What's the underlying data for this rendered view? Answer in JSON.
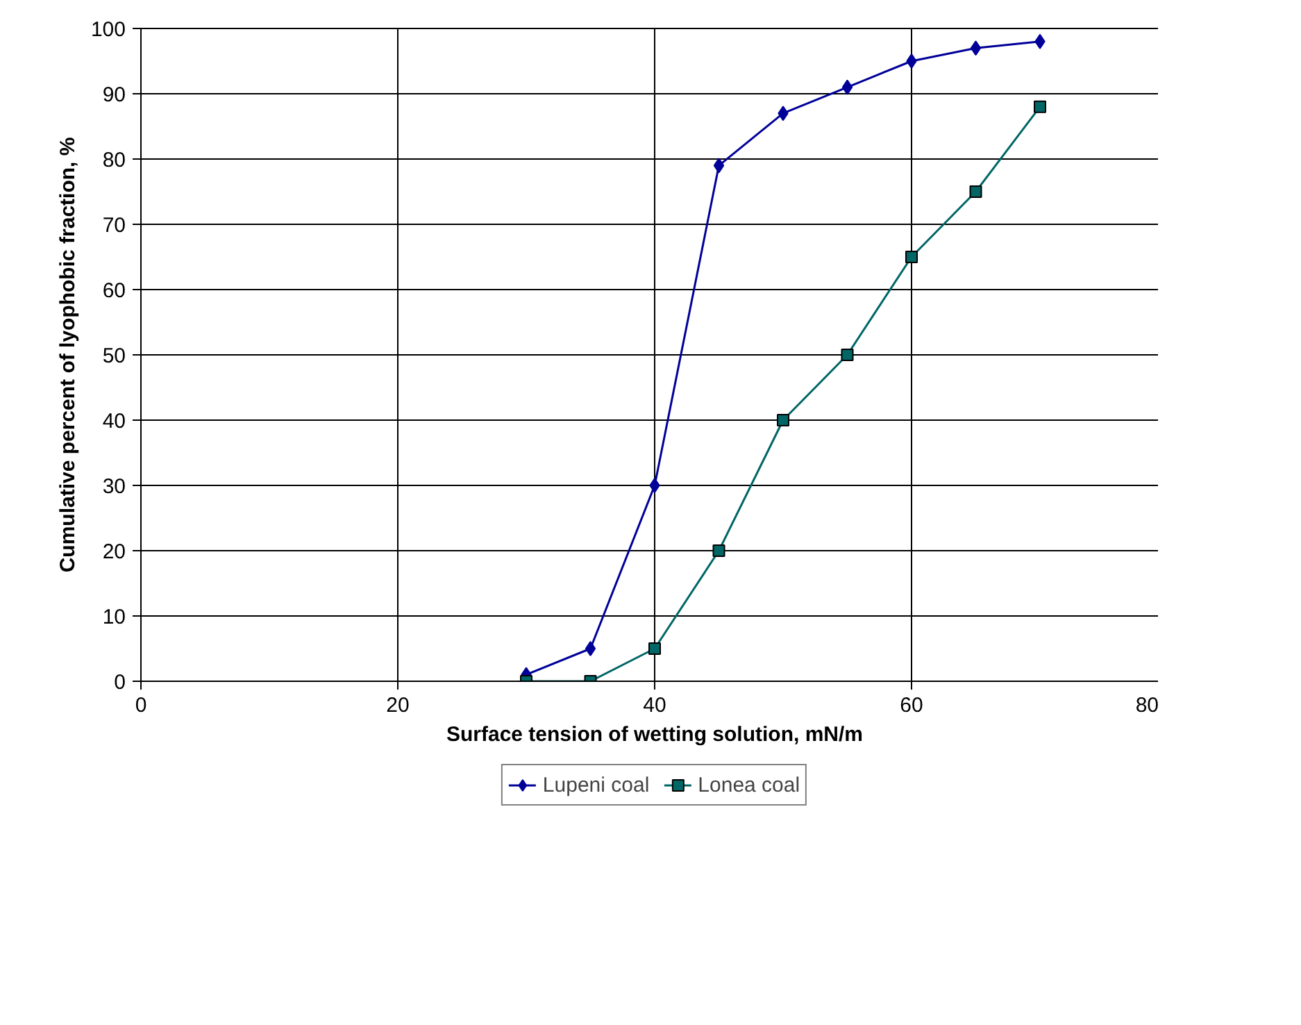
{
  "chart_data": {
    "type": "line",
    "xlabel": "Surface tension of wetting solution, mN/m",
    "ylabel": "Cumulative percent of lyophobic fraction, %",
    "x": [
      30,
      35,
      40,
      45,
      50,
      55,
      60,
      65,
      70
    ],
    "series": [
      {
        "name": "Lupeni coal",
        "color": "#000099",
        "marker": "diamond",
        "values": [
          1,
          5,
          30,
          79,
          87,
          91,
          95,
          97,
          98
        ]
      },
      {
        "name": "Lonea coal",
        "color": "#006666",
        "marker": "square",
        "values": [
          0,
          0,
          5,
          20,
          40,
          50,
          65,
          75,
          88
        ]
      }
    ],
    "xlim": [
      0,
      80
    ],
    "xticks": [
      0,
      20,
      40,
      60,
      80
    ],
    "ylim": [
      0,
      100
    ],
    "yticks": [
      0,
      10,
      20,
      30,
      40,
      50,
      60,
      70,
      80,
      90,
      100
    ],
    "grid": true,
    "legend": "bottom",
    "line_style": "solid"
  }
}
